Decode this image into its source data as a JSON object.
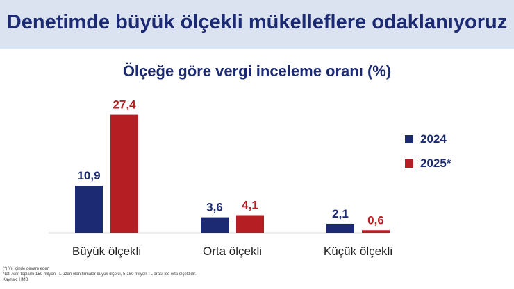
{
  "header": {
    "title": "Denetimde büyük ölçekli mükelleflere odaklanıyoruz"
  },
  "colors": {
    "series_2024": "#1b2a72",
    "series_2025": "#b51f24",
    "header_bg": "#dbe3f1"
  },
  "chart_data": {
    "type": "bar",
    "title": "Ölçeğe göre vergi inceleme oranı (%)",
    "categories": [
      "Büyük ölçekli",
      "Orta ölçekli",
      "Küçük ölçekli"
    ],
    "series": [
      {
        "name": "2024",
        "values": [
          10.9,
          3.6,
          2.1
        ],
        "labels": [
          "10,9",
          "3,6",
          "2,1"
        ],
        "color": "#1b2a72"
      },
      {
        "name": "2025*",
        "values": [
          27.4,
          4.1,
          0.6
        ],
        "labels": [
          "27,4",
          "4,1",
          "0,6"
        ],
        "color": "#b51f24"
      }
    ],
    "legend_position": "right",
    "grid": false
  },
  "notes": {
    "line1": "(*) Yıl içinde devam eden",
    "line2": "Not: Aktif toplamı 150 milyon TL üzeri olan firmalar büyük ölçekli, 5-150 milyon TL arası ise orta ölçeklidir.",
    "line3": "Kaynak: HMB"
  }
}
